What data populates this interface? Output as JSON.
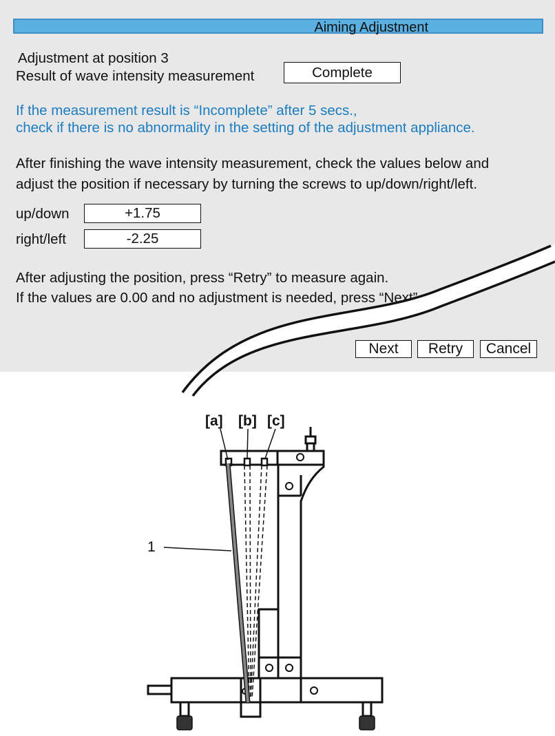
{
  "dialog": {
    "title": "Aiming Adjustment",
    "position_line": "Adjustment at position 3",
    "result_label": "Result of wave intensity measurement",
    "result_value": "Complete",
    "warning_line1": "If the measurement result is “Incomplete” after 5 secs.,",
    "warning_line2": "check if there is no abnormality in the setting of the adjustment appliance.",
    "instruction_line1": "After finishing the wave intensity measurement, check the values below and",
    "instruction_line2": "adjust the position if necessary by turning the screws to up/down/right/left.",
    "updown_label": "up/down",
    "updown_value": "+1.75",
    "rightleft_label": "right/left",
    "rightleft_value": "-2.25",
    "retry_line": "After adjusting the position, press “Retry” to measure again.",
    "next_line": "If the values are 0.00 and no adjustment is needed, press “Next”.",
    "buttons": {
      "next": "Next",
      "retry": "Retry",
      "cancel": "Cancel"
    },
    "colors": {
      "title_bar": "#5ab0e0",
      "warning_text": "#1b7cc0",
      "panel_bg": "#e8e8e8"
    }
  },
  "diagram": {
    "labels": {
      "a": "[a]",
      "b": "[b]",
      "c": "[c]",
      "part": "1"
    }
  }
}
